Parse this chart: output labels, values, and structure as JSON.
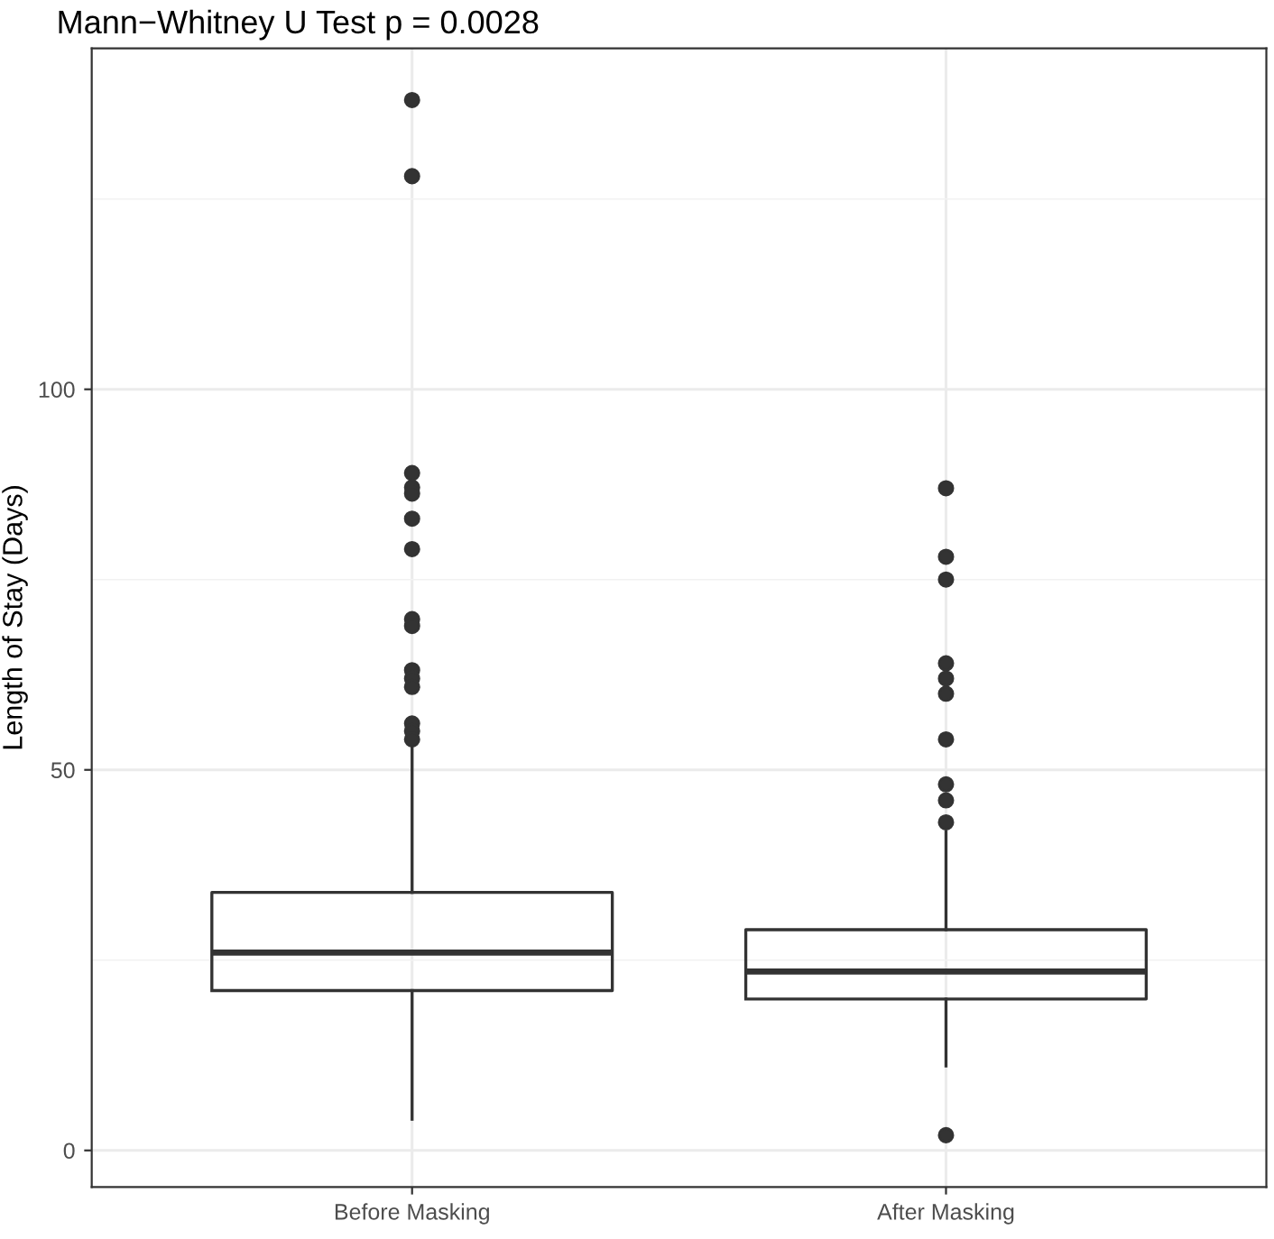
{
  "chart_data": {
    "type": "box",
    "title": "Mann−Whitney U Test p = 0.0028",
    "ylabel": "Length of Stay (Days)",
    "categories": [
      "Before Masking",
      "After Masking"
    ],
    "boxes": [
      {
        "low": 4.1,
        "q1": 21,
        "median": 26,
        "q3": 33.9,
        "high": 53,
        "outliers": [
          138,
          128,
          89,
          87.1,
          86.3,
          83,
          79,
          69.8,
          68.9,
          63.1,
          62,
          60.9,
          56.1,
          55.1,
          54
        ]
      },
      {
        "low": 11.1,
        "q1": 19.9,
        "median": 23.5,
        "q3": 29,
        "high": 41.9,
        "outliers": [
          87,
          78,
          75,
          64,
          62,
          60,
          54,
          48.1,
          46,
          43.1,
          2
        ]
      }
    ],
    "color": "#333333",
    "ylim": [
      -4.8,
      144.8
    ],
    "yticks": [
      0,
      50,
      100
    ],
    "grid": true
  }
}
